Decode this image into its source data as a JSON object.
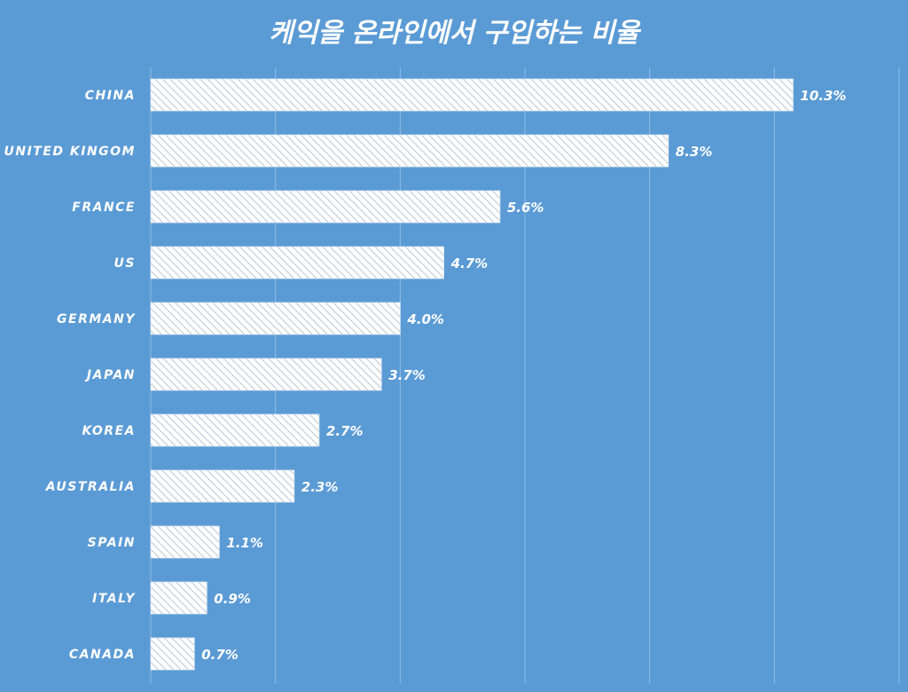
{
  "chart_data": {
    "type": "bar",
    "orientation": "horizontal",
    "title": "케익을 온라인에서 구입하는 비율",
    "categories": [
      "CHINA",
      "UNITED KINGOM",
      "FRANCE",
      "US",
      "GERMANY",
      "JAPAN",
      "KOREA",
      "AUSTRALIA",
      "SPAIN",
      "ITALY",
      "CANADA"
    ],
    "values": [
      10.3,
      8.3,
      5.6,
      4.7,
      4.0,
      3.7,
      2.7,
      2.3,
      1.1,
      0.9,
      0.7
    ],
    "data_labels": [
      "10.3%",
      "8.3%",
      "5.6%",
      "4.7%",
      "4.0%",
      "3.7%",
      "2.7%",
      "2.3%",
      "1.1%",
      "0.9%",
      "0.7%"
    ],
    "xlim": [
      0,
      12
    ],
    "grid_step": 2,
    "grid": true,
    "legend": false,
    "xlabel": "",
    "ylabel": "",
    "colors": {
      "background": "#5b9bd5",
      "bar_fill": "#ffffff",
      "bar_hatch": "#b8c7d6",
      "grid": "#8fbbe6",
      "text": "#ffffff"
    }
  }
}
